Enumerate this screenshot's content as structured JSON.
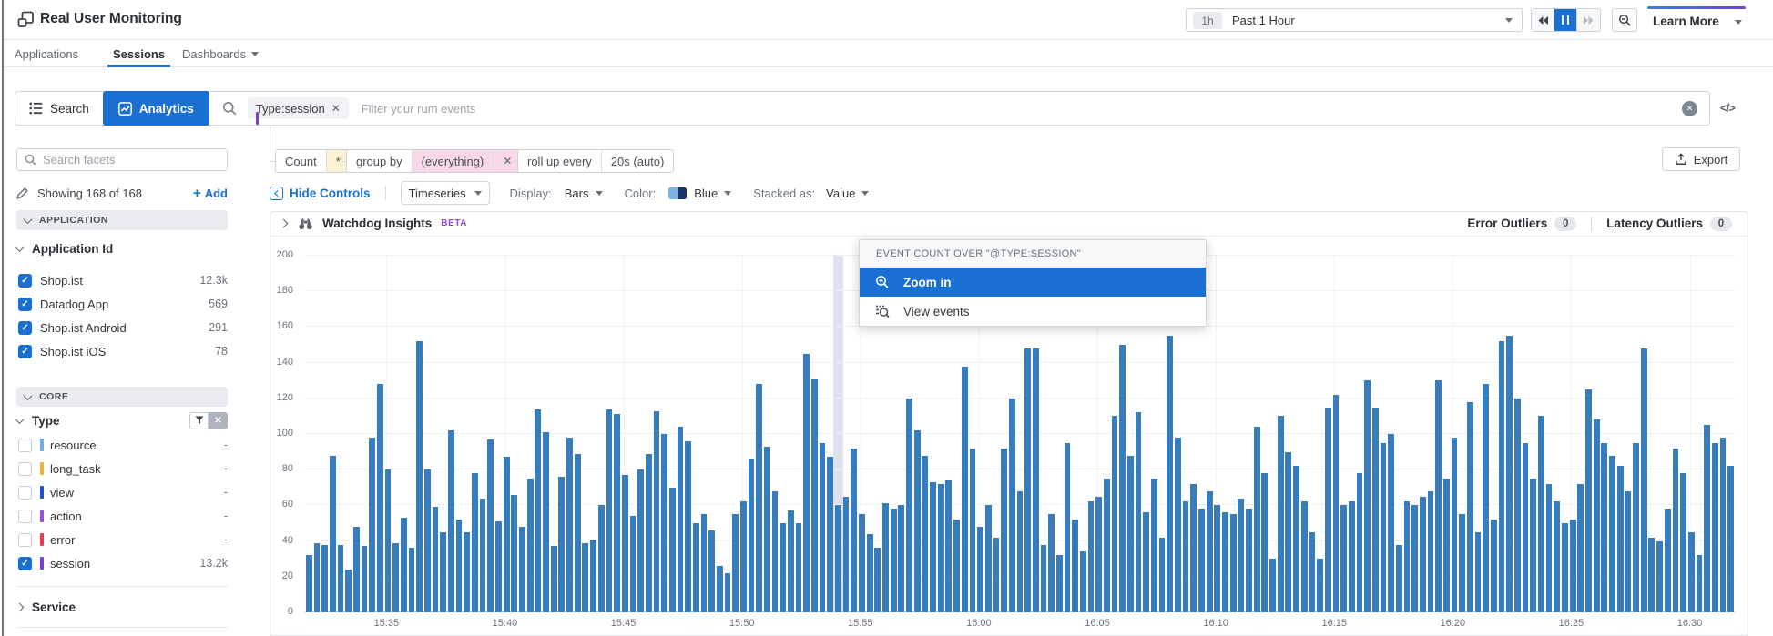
{
  "colors": {
    "accent_blue": "#1a70d2",
    "bar_blue": "#377cbd",
    "session_purple": "#7b3dd3",
    "beta_purple": "#8a4be5",
    "selection_band": "#dee2ec"
  },
  "icons": {
    "rum-logo": "overlapping-squares",
    "search": "magnifier",
    "analytics": "line-chart-in-square",
    "clear": "circle-x",
    "code": "</>",
    "pencil": "edit-pencil",
    "add": "+",
    "filter": "funnel",
    "export": "upload-arrow",
    "watchdog": "binoculars",
    "zoom_in": "magnifier-plus",
    "zoom_out": "magnifier-minus",
    "view_events": "list-magnifier",
    "pause": "pause-bars",
    "rewind": "double-triangle-left",
    "forward": "double-triangle-right"
  },
  "header": {
    "title": "Real User Monitoring",
    "time_badge": "1h",
    "time_label": "Past 1 Hour",
    "learn_more": "Learn More"
  },
  "nav": {
    "tabs": [
      {
        "label": "Applications",
        "active": false
      },
      {
        "label": "Sessions",
        "active": true
      },
      {
        "label": "Dashboards",
        "active": false
      }
    ]
  },
  "filter_bar": {
    "search_label": "Search",
    "analytics_label": "Analytics",
    "token_label": "Type:session",
    "token_close": "✕",
    "placeholder": "Filter your rum events",
    "code_toggle": "</>"
  },
  "sidebar": {
    "facet_search_placeholder": "Search facets",
    "showing_text": "Showing 168 of 168",
    "add_label": "Add",
    "application_section": "APPLICATION",
    "core_section": "CORE",
    "application_id": {
      "label": "Application Id",
      "items": [
        {
          "label": "Shop.ist",
          "count": "12.3k",
          "checked": true
        },
        {
          "label": "Datadog App",
          "count": "569",
          "checked": true
        },
        {
          "label": "Shop.ist Android",
          "count": "291",
          "checked": true
        },
        {
          "label": "Shop.ist iOS",
          "count": "78",
          "checked": true
        }
      ]
    },
    "type": {
      "label": "Type",
      "items": [
        {
          "label": "resource",
          "count": "-",
          "checked": false,
          "color": "#6db1e3"
        },
        {
          "label": "long_task",
          "count": "-",
          "checked": false,
          "color": "#edb43d"
        },
        {
          "label": "view",
          "count": "-",
          "checked": false,
          "color": "#2150d6"
        },
        {
          "label": "action",
          "count": "-",
          "checked": false,
          "color": "#9154dd"
        },
        {
          "label": "error",
          "count": "-",
          "checked": false,
          "color": "#ee3a51"
        },
        {
          "label": "session",
          "count": "13.2k",
          "checked": true,
          "color": "#7b3dd3"
        }
      ]
    },
    "service_label": "Service"
  },
  "query_bar": {
    "count_label": "Count",
    "count_value": "*",
    "group_by_label": "group by",
    "group_by_value": "(everything)",
    "group_by_close": "✕",
    "rollup_label": "roll up every",
    "rollup_value": "20s (auto)",
    "export_label": "Export"
  },
  "display_bar": {
    "hide_controls": "Hide Controls",
    "view_type": "Timeseries",
    "display_label": "Display:",
    "display_value": "Bars",
    "color_label": "Color:",
    "color_value": "Blue",
    "stacked_label": "Stacked as:",
    "stacked_value": "Value"
  },
  "watchdog": {
    "title": "Watchdog Insights",
    "beta": "BETA",
    "error_outliers_label": "Error Outliers",
    "error_outliers_count": "0",
    "latency_outliers_label": "Latency Outliers",
    "latency_outliers_count": "0"
  },
  "context_menu": {
    "header": "EVENT COUNT OVER \"@TYPE:SESSION\"",
    "items": [
      {
        "label": "Zoom in",
        "active": true
      },
      {
        "label": "View events",
        "active": false
      }
    ]
  },
  "chart_data": {
    "type": "bar",
    "title": "Event count over \"@type:session\"",
    "xlabel": "",
    "ylabel": "",
    "ylim": [
      0,
      200
    ],
    "ytick_step": 20,
    "grid": true,
    "bar_color": "#377cbd",
    "bar_interval_seconds": 20,
    "x_labels": [
      "15:35",
      "15:40",
      "15:45",
      "15:50",
      "15:55",
      "16:00",
      "16:05",
      "16:10",
      "16:15",
      "16:20",
      "16:25",
      "16:30"
    ],
    "first_label_bar_index": 10.3,
    "label_every_n_bars": 15,
    "selected_index": 67,
    "values": [
      32,
      39,
      38,
      88,
      38,
      24,
      48,
      37,
      98,
      128,
      80,
      39,
      53,
      36,
      152,
      80,
      59,
      45,
      102,
      52,
      45,
      78,
      64,
      97,
      51,
      87,
      66,
      48,
      75,
      114,
      101,
      37,
      76,
      98,
      89,
      39,
      41,
      60,
      114,
      111,
      77,
      54,
      80,
      89,
      113,
      100,
      70,
      104,
      96,
      50,
      55,
      46,
      26,
      22,
      55,
      62,
      86,
      128,
      93,
      68,
      50,
      57,
      50,
      145,
      131,
      95,
      87,
      60,
      65,
      92,
      55,
      44,
      36,
      61,
      58,
      60,
      120,
      102,
      88,
      73,
      72,
      74,
      52,
      138,
      92,
      48,
      60,
      42,
      92,
      120,
      68,
      148,
      148,
      38,
      55,
      32,
      95,
      52,
      34,
      62,
      65,
      75,
      110,
      150,
      88,
      112,
      56,
      75,
      42,
      155,
      98,
      62,
      72,
      58,
      68,
      60,
      56,
      55,
      64,
      58,
      104,
      78,
      30,
      110,
      90,
      82,
      62,
      45,
      30,
      115,
      122,
      60,
      62,
      78,
      130,
      115,
      95,
      100,
      38,
      62,
      60,
      65,
      68,
      130,
      75,
      98,
      55,
      118,
      45,
      128,
      52,
      152,
      155,
      120,
      95,
      75,
      110,
      72,
      62,
      50,
      52,
      72,
      125,
      108,
      95,
      88,
      82,
      68,
      95,
      148,
      42,
      40,
      58,
      92,
      78,
      45,
      32,
      105,
      95,
      98,
      82
    ]
  }
}
